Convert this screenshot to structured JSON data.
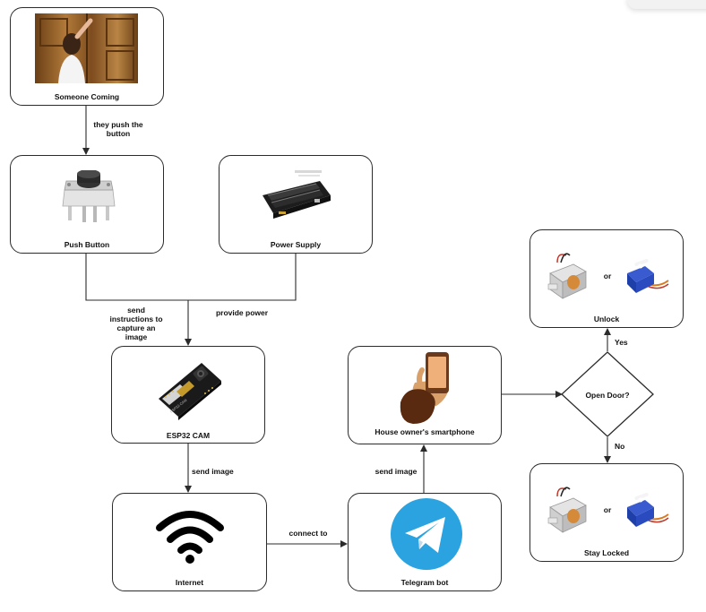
{
  "nodes": {
    "someone_coming": "Someone Coming",
    "push_button": "Push Button",
    "power_supply": "Power Supply",
    "esp32_cam": "ESP32 CAM",
    "internet": "Internet",
    "telegram_bot": "Telegram bot",
    "house_owner": "House owner's smartphone",
    "open_door": "Open Door?",
    "unlock": "Unlock",
    "stay_locked": "Stay Locked"
  },
  "edges": {
    "push": "they push the button",
    "send_instructions": "send instructions to capture an image",
    "provide_power": "provide power",
    "send_image_1": "send image",
    "connect_to": "connect to",
    "send_image_2": "send image",
    "yes": "Yes",
    "no": "No"
  },
  "separators": {
    "unlock_or": "or",
    "stay_locked_or": "or"
  },
  "colors": {
    "line": "#2b2b2b",
    "telegram": "#2aa3e0",
    "servo_blue": "#1f3fa8",
    "hand_skin": "#d9a06a",
    "door_wood": "#8a5a26"
  },
  "icons": [
    "girl-at-door-photo",
    "push-button-switch",
    "battery-holder",
    "esp32-cam-board",
    "wifi-icon",
    "telegram-icon",
    "smartphone-in-hand",
    "solenoid-lock",
    "servo-motor"
  ]
}
